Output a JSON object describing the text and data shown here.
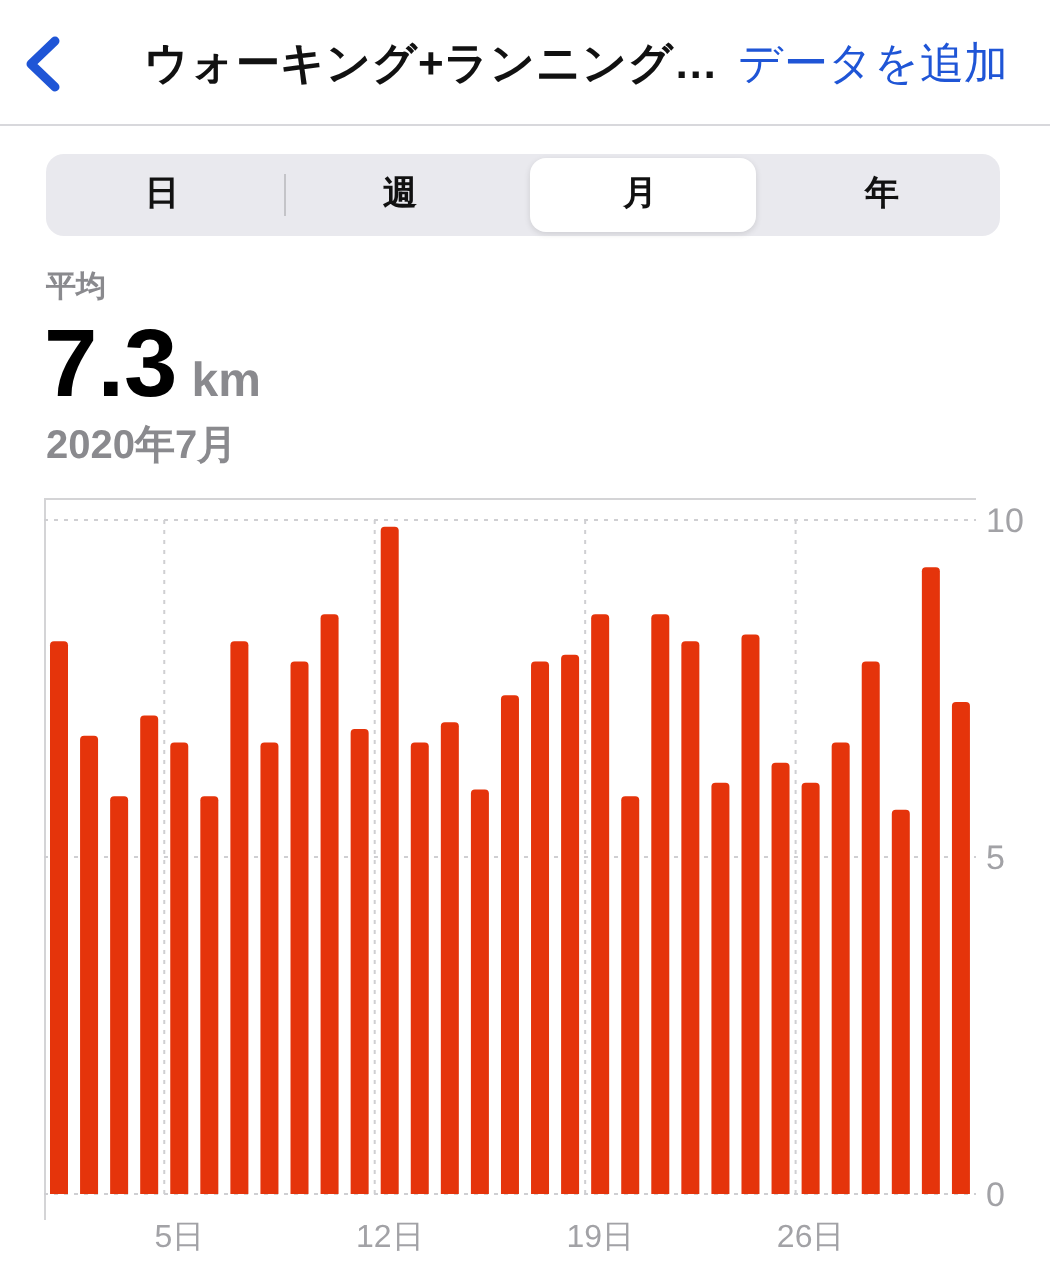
{
  "chart_data": {
    "type": "bar",
    "title": "ウォーキング+ランニング…",
    "subtitle": "2020年7月",
    "annotations": [
      "データを追加",
      "日",
      "週",
      "月",
      "年",
      "平均",
      "7.3",
      "km"
    ],
    "categories": [
      null,
      null,
      null,
      null,
      "5日",
      null,
      null,
      null,
      null,
      null,
      null,
      "12日",
      null,
      null,
      null,
      null,
      null,
      null,
      "19日",
      null,
      null,
      null,
      null,
      null,
      null,
      "26日",
      null,
      null,
      null,
      null,
      null
    ],
    "values": [
      8.2,
      6.8,
      5.9,
      7.1,
      6.7,
      5.9,
      8.2,
      6.7,
      7.9,
      8.6,
      6.9,
      9.9,
      6.7,
      7.0,
      6.0,
      7.4,
      7.9,
      8.0,
      8.6,
      5.9,
      8.6,
      8.2,
      6.1,
      8.3,
      6.4,
      6.1,
      6.7,
      7.9,
      5.7,
      9.3,
      7.3
    ],
    "color": "#e5340b",
    "ylim": [
      0,
      10
    ],
    "yticks": [
      0,
      5,
      10
    ],
    "grid": true
  }
}
